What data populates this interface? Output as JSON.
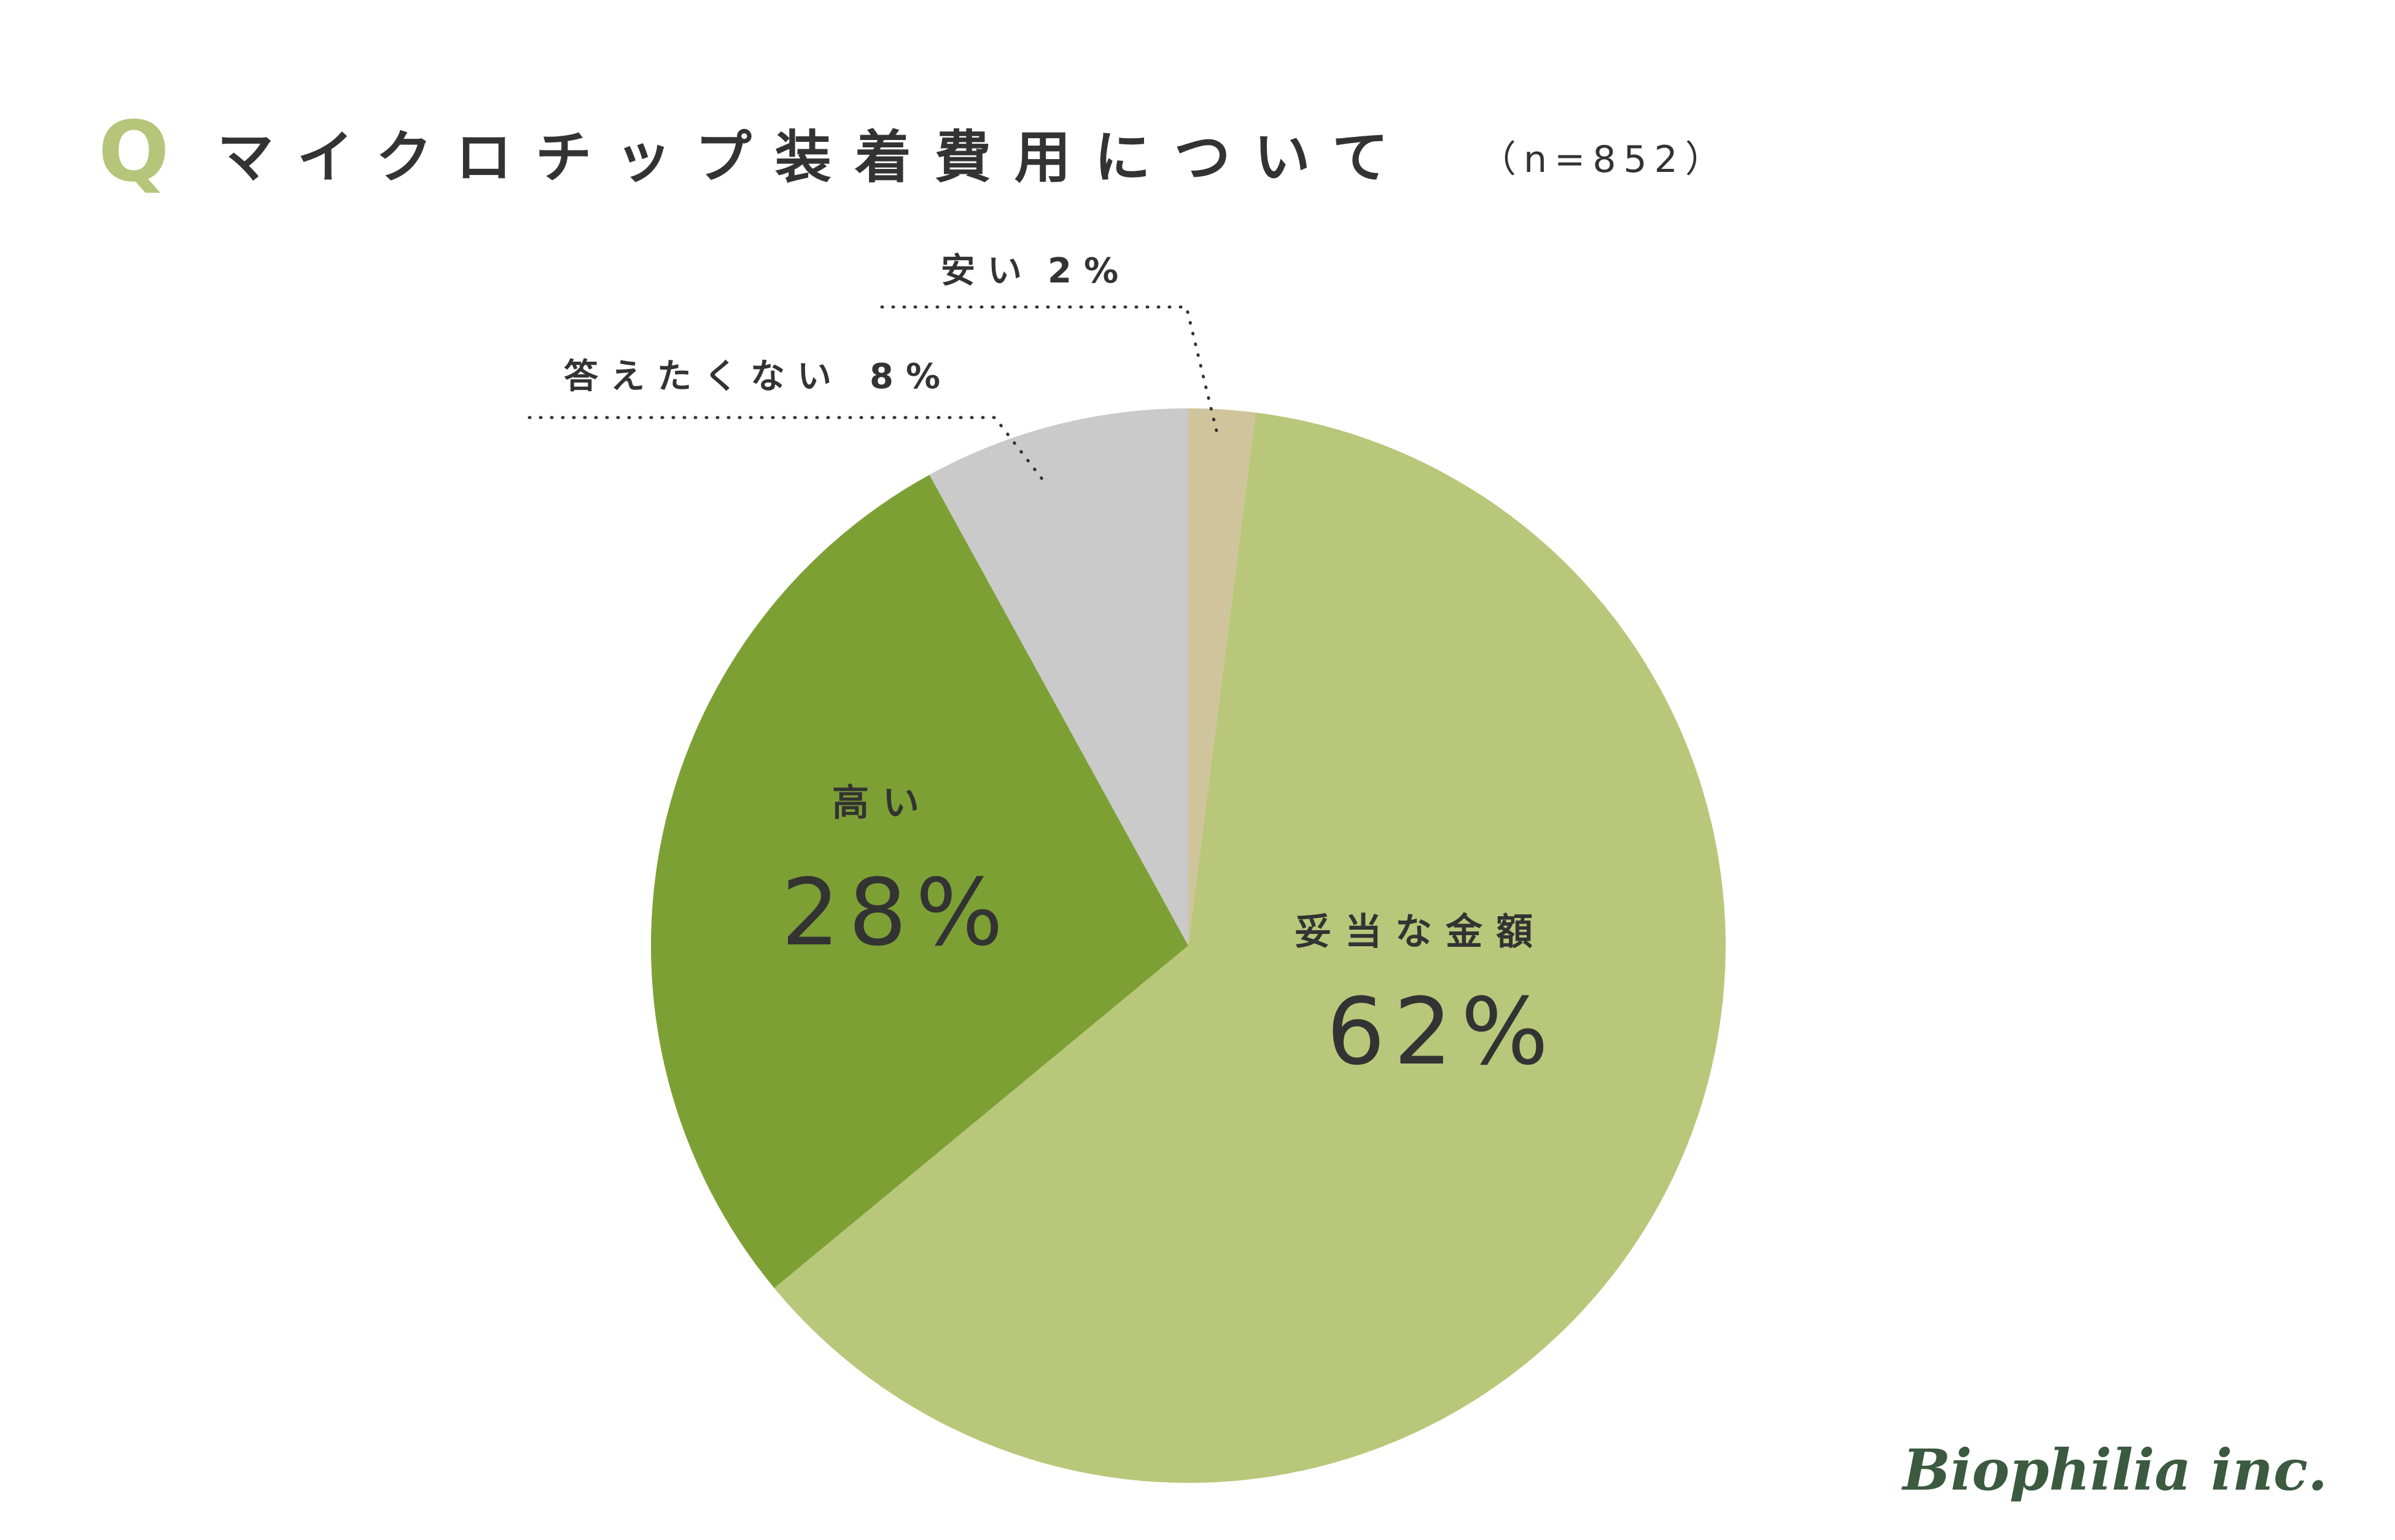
{
  "header": {
    "q_mark": "Q",
    "title": "マイクロチップ装着費用について",
    "sample_size": "（n=852）"
  },
  "chart_data": {
    "type": "pie",
    "start_angle_deg": 0,
    "direction": "clockwise",
    "slices": [
      {
        "name": "安い",
        "value": 2,
        "label": "2%",
        "color": "#cfc49c"
      },
      {
        "name": "妥当な金額",
        "value": 62,
        "label": "62%",
        "color": "#b9c77a"
      },
      {
        "name": "高い",
        "value": 28,
        "label": "28%",
        "color": "#7da035"
      },
      {
        "name": "答えたくない",
        "value": 8,
        "label": "8%",
        "color": "#cacaca"
      }
    ],
    "legend": "none"
  },
  "labels": {
    "cheap_name": "安い",
    "cheap_value": "2%",
    "no_answer_name": "答えたくない",
    "no_answer_value": "8%",
    "high_name": "高い",
    "high_value": "28%",
    "fair_name": "妥当な金額",
    "fair_value": "62%"
  },
  "logo": {
    "text": "Biophilia inc.",
    "color": "#3b5a40"
  }
}
